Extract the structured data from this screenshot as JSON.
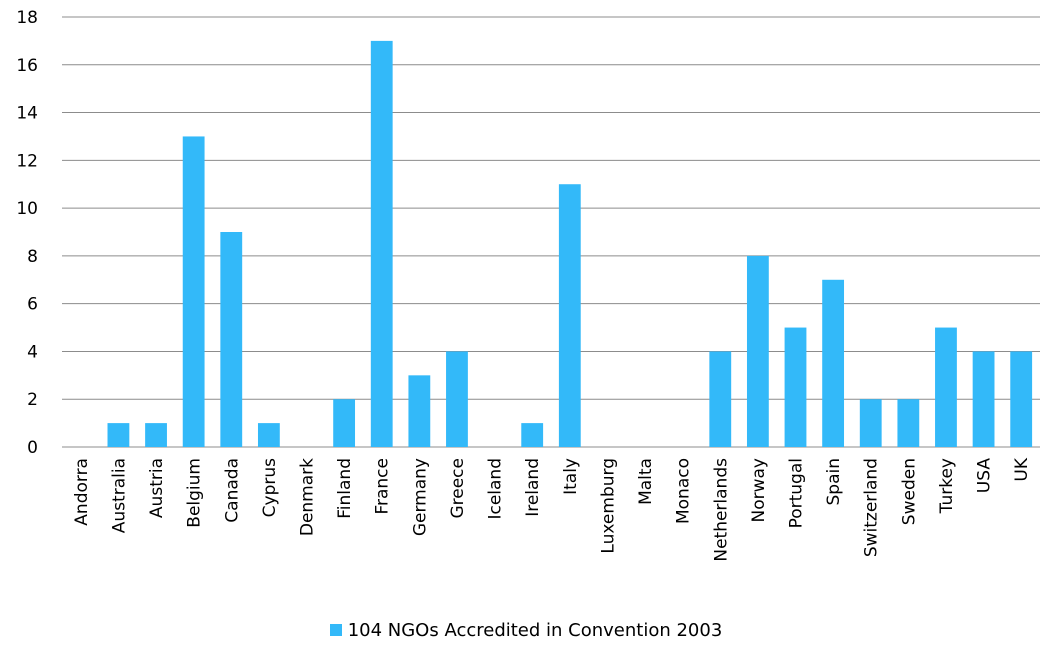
{
  "chart_data": {
    "type": "bar",
    "categories": [
      "Andorra",
      "Australia",
      "Austria",
      "Belgium",
      "Canada",
      "Cyprus",
      "Denmark",
      "Finland",
      "France",
      "Germany",
      "Greece",
      "Iceland",
      "Ireland",
      "Italy",
      "Luxemburg",
      "Malta",
      "Monaco",
      "Netherlands",
      "Norway",
      "Portugal",
      "Spain",
      "Switzerland",
      "Sweden",
      "Turkey",
      "USA",
      "UK"
    ],
    "series": [
      {
        "name": "104 NGOs Accredited in Convention 2003",
        "values": [
          0,
          1,
          1,
          13,
          9,
          1,
          0,
          2,
          17,
          3,
          4,
          0,
          1,
          11,
          0,
          0,
          0,
          4,
          8,
          5,
          7,
          2,
          2,
          5,
          4,
          4
        ]
      }
    ],
    "ylim": [
      0,
      18
    ],
    "yticks": [
      0,
      2,
      4,
      6,
      8,
      10,
      12,
      14,
      16,
      18
    ],
    "grid": true,
    "legend_position": "bottom",
    "bar_color": "#33B9F9"
  }
}
